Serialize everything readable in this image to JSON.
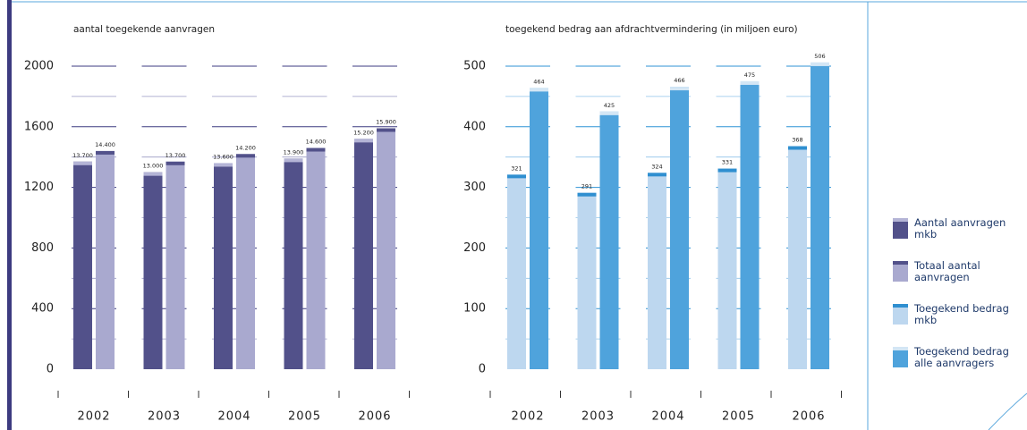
{
  "chart_data": [
    {
      "type": "bar",
      "title": "aantal toegekende aanvragen",
      "categories": [
        "2002",
        "2003",
        "2004",
        "2005",
        "2006"
      ],
      "series": [
        {
          "name": "Aantal aanvragen mkb",
          "color": "#52518a",
          "cap_color": "#b4b4d6",
          "values": [
            1370,
            1300,
            1360,
            1390,
            1520
          ],
          "value_labels": [
            "13.700",
            "13.000",
            "13.600",
            "13.900",
            "15.200"
          ]
        },
        {
          "name": "Totaal aantal aanvragen",
          "color": "#a9a9cf",
          "cap_color": "#52518a",
          "values": [
            1440,
            1370,
            1420,
            1460,
            1590
          ],
          "value_labels": [
            "14.400",
            "13.700",
            "14.200",
            "14.600",
            "15.900"
          ]
        }
      ],
      "ylim": [
        0,
        2000
      ],
      "yticks": [
        0,
        400,
        800,
        1200,
        1600,
        2000
      ],
      "yminorticks": [
        200,
        600,
        1000,
        1400,
        1800
      ],
      "grid": true
    },
    {
      "type": "bar",
      "title": "toegekend bedrag aan afdrachtvermindering  (in miljoen euro)",
      "categories": [
        "2002",
        "2003",
        "2004",
        "2005",
        "2006"
      ],
      "series": [
        {
          "name": "Toegekend bedrag mkb",
          "color": "#bdd7ef",
          "cap_color": "#2f8fd0",
          "values": [
            321,
            291,
            324,
            331,
            368
          ]
        },
        {
          "name": "Toegekend bedrag alle aanvragers",
          "color": "#4fa3dc",
          "cap_color": "#d3e6f5",
          "values": [
            464,
            425,
            466,
            475,
            506
          ]
        }
      ],
      "ylim": [
        0,
        500
      ],
      "yticks": [
        0,
        100,
        200,
        300,
        400,
        500
      ],
      "yminorticks": [
        50,
        150,
        250,
        350,
        450
      ],
      "grid": true
    }
  ]
}
